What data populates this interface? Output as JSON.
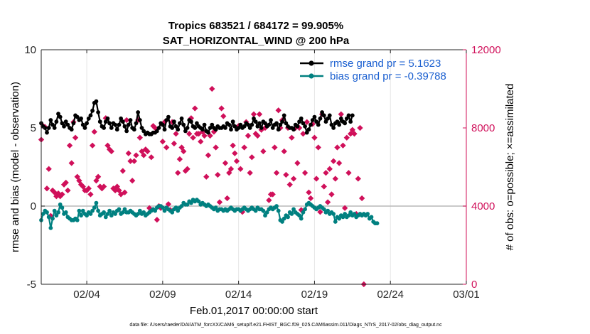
{
  "chart_data": {
    "type": "line",
    "title_line1": "Tropics 683521 / 684172 = 99.905%",
    "title_line2": "SAT_HORIZONTAL_WIND @ 200 hPa",
    "xlabel": "Feb.01,2017 00:00:00 start",
    "ylabel_left": "rmse and bias (model - observation)",
    "ylabel_right": "# of obs: o=possible; ×=assimilated",
    "footnote": "data file: /Users/raeder/DAI/ATM_forcXX/CAM6_setup/f.e21.FHIST_BGC.f09_025.CAM6assim.011/Diags_NTrS_2017-02/obs_diag_output.nc",
    "xlim": [
      1,
      29
    ],
    "ylim_left": [
      -5,
      10
    ],
    "ylim_right": [
      0,
      12000
    ],
    "x_ticks": [
      {
        "value": 4,
        "label": "02/04"
      },
      {
        "value": 9,
        "label": "02/09"
      },
      {
        "value": 14,
        "label": "02/14"
      },
      {
        "value": 19,
        "label": "02/19"
      },
      {
        "value": 24,
        "label": "02/24"
      },
      {
        "value": 29,
        "label": "03/01"
      }
    ],
    "y_ticks_left": [
      {
        "value": 10,
        "label": "10"
      },
      {
        "value": 5,
        "label": "5"
      },
      {
        "value": 0,
        "label": "0"
      },
      {
        "value": -5,
        "label": "-5"
      }
    ],
    "y_ticks_right": [
      {
        "value": 12000,
        "label": "12000"
      },
      {
        "value": 8000,
        "label": "8000"
      },
      {
        "value": 4000,
        "label": "4000"
      },
      {
        "value": 0,
        "label": "0"
      }
    ],
    "legend_position": "top-right",
    "colors": {
      "rmse": "#000000",
      "bias": "#008080",
      "obs": "#D0105A",
      "axis": "#262626",
      "zero_line": "#b8b8b8",
      "grid": "#e6e6e6"
    },
    "x_start": 1.0,
    "x_step": 0.125,
    "series": [
      {
        "name": "rmse grand pr = 5.1623",
        "axis": "left",
        "values": [
          5.3,
          5.1,
          5.0,
          4.7,
          5.0,
          5.5,
          5.2,
          5.0,
          5.4,
          5.9,
          5.7,
          5.3,
          5.1,
          5.4,
          5.2,
          5.0,
          4.9,
          5.3,
          5.8,
          5.7,
          5.5,
          5.6,
          5.2,
          5.0,
          5.3,
          5.6,
          5.8,
          6.1,
          6.6,
          6.7,
          6.0,
          5.4,
          5.1,
          5.0,
          5.4,
          5.6,
          5.3,
          5.0,
          5.3,
          5.2,
          4.9,
          5.2,
          5.6,
          5.4,
          5.1,
          4.8,
          5.2,
          5.5,
          5.0,
          4.9,
          5.3,
          6.0,
          5.5,
          5.0,
          4.8,
          4.6,
          4.7,
          4.6,
          4.6,
          4.7,
          4.7,
          4.8,
          5.0,
          5.3,
          5.2,
          4.9,
          5.5,
          5.7,
          5.1,
          5.0,
          5.4,
          5.1,
          4.9,
          5.3,
          5.6,
          5.2,
          4.8,
          5.0,
          5.5,
          5.4,
          5.1,
          5.0,
          5.3,
          5.1,
          5.0,
          4.9,
          5.2,
          4.8,
          4.7,
          5.0,
          5.2,
          5.0,
          4.9,
          5.1,
          5.0,
          5.0,
          5.1,
          5.0,
          5.3,
          5.2,
          4.9,
          5.4,
          5.1,
          4.9,
          5.0,
          5.2,
          5.0,
          5.1,
          5.3,
          5.2,
          5.0,
          5.2,
          5.6,
          5.4,
          5.1,
          5.3,
          5.0,
          5.4,
          5.3,
          5.1,
          5.2,
          5.5,
          5.0,
          5.2,
          5.3,
          4.9,
          5.2,
          5.4,
          5.8,
          5.3,
          5.1,
          5.0,
          5.0,
          4.9,
          5.2,
          5.1,
          5.4,
          5.6,
          5.3,
          5.1,
          4.7,
          4.9,
          5.2,
          5.5,
          5.7,
          5.4,
          5.2,
          5.6,
          6.0,
          5.8,
          5.4,
          5.6,
          5.8,
          5.2,
          5.0,
          5.3,
          5.4,
          5.2,
          5.6,
          5.4,
          5.3,
          5.6,
          5.8,
          5.4,
          5.8
        ]
      },
      {
        "name": "bias grand pr = -0.39788",
        "axis": "left",
        "values": [
          -0.9,
          -0.5,
          -0.3,
          -0.4,
          -0.7,
          -1.4,
          -0.8,
          -0.3,
          -0.6,
          -0.4,
          0.1,
          -0.1,
          -0.5,
          -0.4,
          -0.7,
          -0.8,
          -0.9,
          -0.9,
          -0.8,
          -0.9,
          -0.3,
          -0.6,
          -0.3,
          -0.5,
          -0.6,
          -0.4,
          -0.5,
          -0.3,
          -0.1,
          0.2,
          -0.3,
          -0.6,
          -0.5,
          -0.4,
          -0.7,
          -0.5,
          -0.3,
          -0.6,
          -0.4,
          -0.5,
          -0.3,
          -0.2,
          -0.5,
          -0.4,
          -0.2,
          -0.4,
          -0.4,
          -0.3,
          -0.4,
          -0.5,
          -0.6,
          -0.5,
          -0.3,
          -0.5,
          -0.4,
          -0.6,
          -0.5,
          -0.4,
          -0.3,
          -0.2,
          -0.3,
          -0.1,
          0.0,
          0.0,
          -0.1,
          -0.3,
          -0.1,
          -0.2,
          -0.3,
          -0.4,
          -0.2,
          -0.1,
          -0.3,
          -0.1,
          0.0,
          0.2,
          0.1,
          0.1,
          0.3,
          0.2,
          0.4,
          0.3,
          0.4,
          0.3,
          0.1,
          0.2,
          0.1,
          0.0,
          0.1,
          0.0,
          -0.1,
          -0.2,
          -0.1,
          -0.3,
          -0.2,
          -0.2,
          -0.3,
          -0.2,
          -0.3,
          -0.2,
          -0.1,
          -0.2,
          -0.3,
          -0.2,
          -0.2,
          -0.3,
          -0.2,
          -0.1,
          -0.2,
          -0.3,
          -0.2,
          -0.1,
          -0.2,
          -0.3,
          -0.1,
          -0.2,
          -0.2,
          -0.3,
          -0.6,
          -0.4,
          -0.2,
          -0.1,
          -0.2,
          -0.1,
          0.0,
          -0.3,
          -0.9,
          -1.0,
          -0.8,
          -0.6,
          -0.7,
          -0.4,
          -0.5,
          -0.2,
          -0.4,
          -0.5,
          -0.6,
          -0.8,
          -0.4,
          -0.2,
          0.1,
          0.2,
          0.1,
          0.0,
          -0.1,
          -0.2,
          -0.1,
          0.0,
          -0.1,
          -0.2,
          -0.4,
          -0.3,
          -0.5,
          -0.4,
          -0.5,
          -1.0,
          -0.7,
          -0.8,
          -0.6,
          -0.7,
          -0.5,
          -0.7,
          -0.6,
          -0.4,
          -0.6,
          -0.5,
          -0.7,
          -0.6,
          -0.5,
          -0.6,
          -0.5,
          -0.6,
          -0.5,
          -0.8,
          -0.7,
          -1.0,
          -1.1,
          -1.1
        ]
      },
      {
        "name": "# of obs (possible / assimilated)",
        "axis": "right",
        "values": [
          7400,
          8100,
          8050,
          4900,
          5900,
          3500,
          4800,
          4700,
          4500,
          4650,
          4500,
          4600,
          5100,
          5200,
          4800,
          7100,
          6200,
          8300,
          7500,
          5500,
          5300,
          5100,
          5000,
          4800,
          4800,
          4900,
          4600,
          7100,
          7800,
          5300,
          5500,
          5000,
          4900,
          5000,
          8500,
          7100,
          6900,
          6800,
          4900,
          4800,
          5000,
          4800,
          4600,
          5800,
          4700,
          8400,
          6700,
          6300,
          5300,
          6300,
          6600,
          8400,
          7500,
          6800,
          6600,
          6900,
          6800,
          3900,
          6500,
          8100,
          8000,
          3300,
          4000,
          3900,
          7300,
          8300,
          7000,
          4100,
          3800,
          8300,
          7200,
          7700,
          5700,
          6400,
          7000,
          6800,
          5800,
          5900,
          7700,
          8500,
          7500,
          9000,
          7700,
          7700,
          7300,
          7800,
          7600,
          5500,
          6600,
          7600,
          10000,
          7800,
          7000,
          5600,
          4200,
          9000,
          8600,
          6200,
          4400,
          5700,
          5900,
          7100,
          6700,
          6300,
          8100,
          5900,
          3700,
          7000,
          8300,
          7600,
          5700,
          6500,
          8700,
          7700,
          7600,
          8700,
          7900,
          6800,
          8000,
          8100,
          4300,
          4600,
          4600,
          7000,
          5700,
          8900,
          8000,
          8400,
          6800,
          5600,
          8000,
          5100,
          7500,
          5400,
          8000,
          6200,
          8000,
          3800,
          7700,
          5700,
          8300,
          4700,
          4400,
          8200,
          7500,
          5400,
          7000,
          3700,
          8700,
          5000,
          5700,
          4200,
          5900,
          4600,
          6300,
          5400,
          7000,
          6200,
          8700,
          7100,
          3900,
          7500,
          5700,
          7700,
          7900,
          7700,
          3600,
          5400,
          8000,
          4400,
          0
        ]
      }
    ]
  }
}
